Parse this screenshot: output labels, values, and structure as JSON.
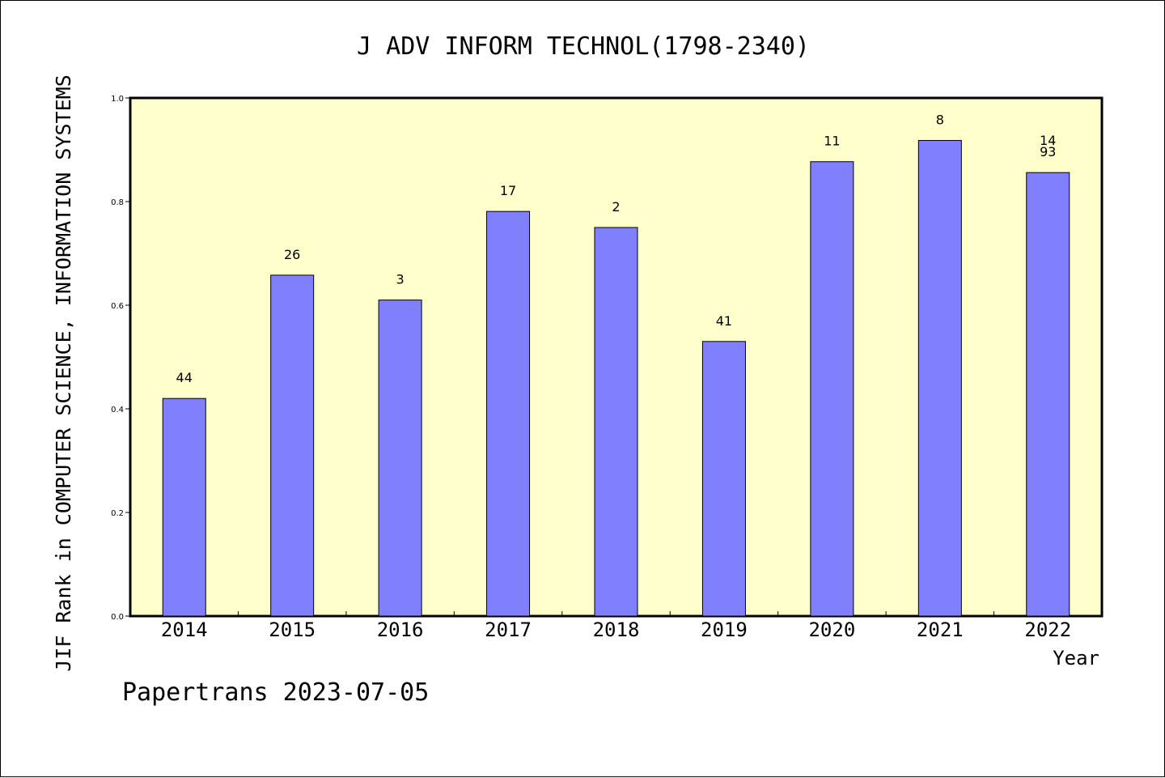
{
  "colors": {
    "plot_background": "#ffffcc",
    "bar_fill": "#8080ff",
    "bar_stroke": "#000000",
    "text": "#000000"
  },
  "footer": "Papertrans 2023-07-05",
  "chart_data": {
    "type": "bar",
    "title": "J ADV INFORM TECHNOL(1798-2340)",
    "xlabel": "Year",
    "ylabel": "JIF Rank in COMPUTER SCIENCE, INFORMATION SYSTEMS",
    "ylim": [
      0,
      1.0
    ],
    "yticks": [
      "0.0",
      "0.2",
      "0.4",
      "0.6",
      "0.8",
      "1.0"
    ],
    "categories": [
      "2014",
      "2015",
      "2016",
      "2017",
      "2018",
      "2019",
      "2020",
      "2021",
      "2022"
    ],
    "values": [
      0.42,
      0.658,
      0.61,
      0.781,
      0.75,
      0.53,
      0.877,
      0.918,
      0.856
    ],
    "labels": [
      "44",
      "26",
      "3",
      "17",
      "2",
      "41",
      "11",
      "8",
      "14\n93"
    ],
    "grid": false,
    "legend": "none"
  }
}
